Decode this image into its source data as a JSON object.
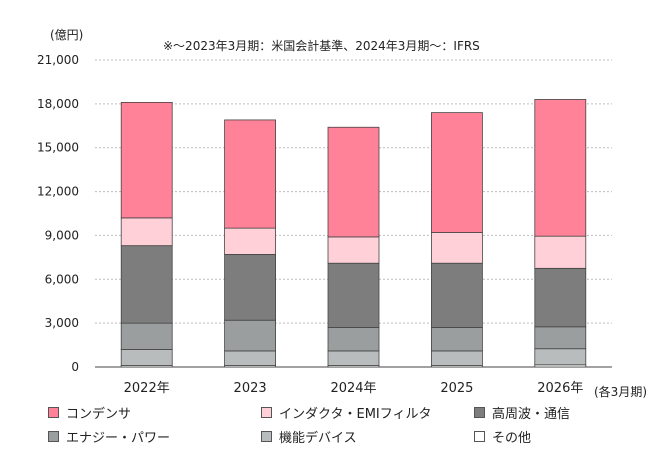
{
  "chart_data": {
    "type": "bar",
    "stacked": true,
    "unit": "(億円)",
    "note": "※～2023年3月期：米国会計基準、2024年3月期～：IFRS",
    "x_unit": "(各3月期)",
    "categories": [
      "2022年",
      "2023",
      "2024年",
      "2025",
      "2026年"
    ],
    "ylim": [
      0,
      21000
    ],
    "yticks": [
      "0",
      "3,000",
      "6,000",
      "9,000",
      "12,000",
      "15,000",
      "18,000",
      "21,000"
    ],
    "grid": true,
    "legend_position": "bottom",
    "series": [
      {
        "name": "その他",
        "color": "#ffffff",
        "values": [
          100,
          100,
          100,
          100,
          150
        ]
      },
      {
        "name": "機能デバイス",
        "color": "#b8bcbc",
        "values": [
          1100,
          1000,
          1000,
          1000,
          1100
        ]
      },
      {
        "name": "エナジー・パワー",
        "color": "#9a9e9e",
        "values": [
          1800,
          2100,
          1600,
          1600,
          1500
        ]
      },
      {
        "name": "高周波・通信",
        "color": "#7d7d7d",
        "values": [
          5300,
          4500,
          4400,
          4400,
          4000
        ]
      },
      {
        "name": "インダクタ・EMIフィルタ",
        "color": "#ffd0d8",
        "values": [
          1900,
          1800,
          1800,
          2100,
          2200
        ]
      },
      {
        "name": "コンデンサ",
        "color": "#ff8299",
        "values": [
          7900,
          7400,
          7500,
          8200,
          9350
        ]
      }
    ]
  },
  "legend": [
    {
      "label": "コンデンサ",
      "color": "#ff8299"
    },
    {
      "label": "インダクタ・EMIフィルタ",
      "color": "#ffd0d8"
    },
    {
      "label": "高周波・通信",
      "color": "#7d7d7d"
    },
    {
      "label": "エナジー・パワー",
      "color": "#9a9e9e"
    },
    {
      "label": "機能デバイス",
      "color": "#b8bcbc"
    },
    {
      "label": "その他",
      "color": "#ffffff"
    }
  ]
}
